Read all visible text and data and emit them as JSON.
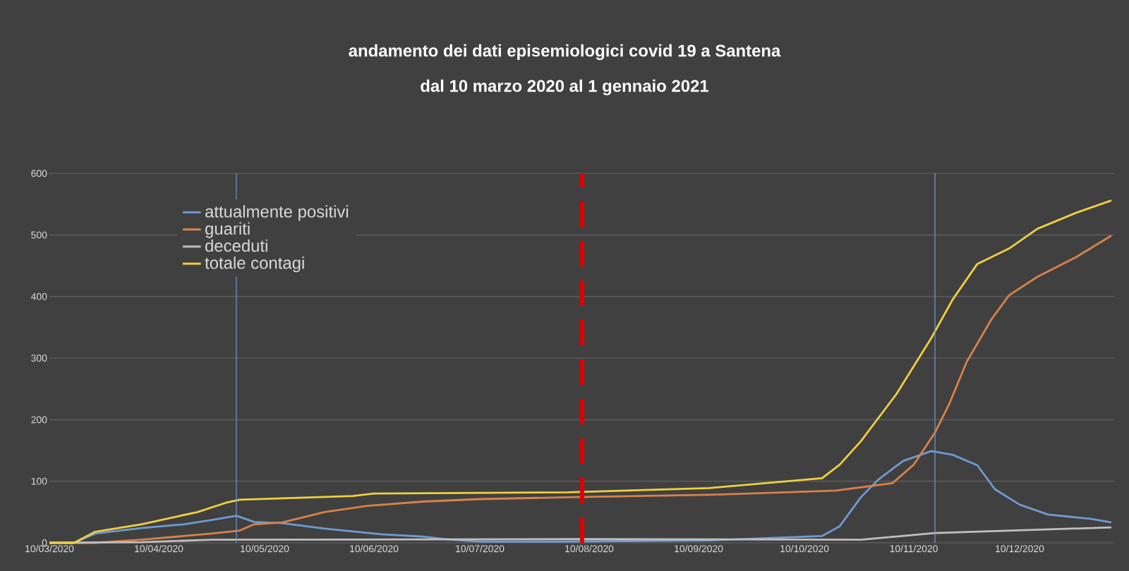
{
  "chart_data": {
    "type": "line",
    "title": "andamento dei dati episemiologici covid 19 a Santena",
    "subtitle": "dal 10 marzo 2020 al 1 gennaio 2021",
    "xlim": [
      "2020-03-10",
      "2021-01-06"
    ],
    "xticks": [
      {
        "value": "2020-03-10",
        "label": "10/03/2020"
      },
      {
        "value": "2020-04-10",
        "label": "10/04/2020"
      },
      {
        "value": "2020-05-10",
        "label": "10/05/2020"
      },
      {
        "value": "2020-06-10",
        "label": "10/06/2020"
      },
      {
        "value": "2020-07-10",
        "label": "10/07/2020"
      },
      {
        "value": "2020-08-10",
        "label": "10/08/2020"
      },
      {
        "value": "2020-09-10",
        "label": "10/09/2020"
      },
      {
        "value": "2020-10-10",
        "label": "10/10/2020"
      },
      {
        "value": "2020-11-10",
        "label": "10/11/2020"
      },
      {
        "value": "2020-12-10",
        "label": "10/12/2020"
      }
    ],
    "ylim": [
      0,
      600
    ],
    "yticks": [
      0,
      100,
      200,
      300,
      400,
      500,
      600
    ],
    "grid": "y",
    "legend": "top left",
    "marker": "none",
    "line_style": "solid",
    "ref_lines": [
      {
        "axis": "x",
        "value": "2020-05-02",
        "color": "#6f9bd0",
        "line_style": "solid"
      },
      {
        "axis": "x",
        "value": "2020-08-08",
        "color": "#e00000",
        "line_style": "dashed"
      },
      {
        "axis": "x",
        "value": "2020-11-16",
        "color": "#6f9bd0",
        "line_style": "solid"
      }
    ],
    "series": [
      {
        "name": "attualmente positivi",
        "color": "#6f9bd0",
        "x": [
          "2020-03-10",
          "2020-03-17",
          "2020-03-23",
          "2020-04-05",
          "2020-04-17",
          "2020-04-25",
          "2020-05-02",
          "2020-05-07",
          "2020-05-15",
          "2020-05-27",
          "2020-06-12",
          "2020-06-24",
          "2020-07-02",
          "2020-07-10",
          "2020-08-04",
          "2020-09-13",
          "2020-10-15",
          "2020-10-20",
          "2020-10-26",
          "2020-10-31",
          "2020-11-07",
          "2020-11-15",
          "2020-11-21",
          "2020-11-28",
          "2020-12-03",
          "2020-12-10",
          "2020-12-18",
          "2020-12-30",
          "2021-01-05"
        ],
        "values": [
          0,
          0,
          15,
          24,
          30,
          37,
          44,
          34,
          32,
          23,
          14,
          10,
          5,
          2,
          2,
          4,
          11,
          27,
          74,
          103,
          133,
          149,
          143,
          126,
          87,
          62,
          46,
          39,
          33
        ]
      },
      {
        "name": "guariti",
        "color": "#d9824a",
        "x": [
          "2020-03-10",
          "2020-03-23",
          "2020-04-05",
          "2020-04-25",
          "2020-05-03",
          "2020-05-07",
          "2020-05-15",
          "2020-05-27",
          "2020-06-08",
          "2020-06-24",
          "2020-07-10",
          "2020-08-04",
          "2020-09-13",
          "2020-10-15",
          "2020-10-19",
          "2020-11-04",
          "2020-11-10",
          "2020-11-16",
          "2020-11-20",
          "2020-11-25",
          "2020-12-02",
          "2020-12-07",
          "2020-12-15",
          "2020-12-26",
          "2021-01-05"
        ],
        "values": [
          0,
          0,
          5,
          15,
          20,
          30,
          33,
          50,
          60,
          67,
          71,
          74,
          78,
          84,
          85,
          97,
          127,
          179,
          225,
          294,
          363,
          402,
          432,
          464,
          499
        ]
      },
      {
        "name": "deceduti",
        "color": "#bfbfbf",
        "x": [
          "2020-03-10",
          "2020-04-05",
          "2020-04-25",
          "2020-08-04",
          "2020-10-26",
          "2020-11-16",
          "2021-01-05"
        ],
        "values": [
          0,
          1,
          5,
          6,
          5,
          16,
          25
        ]
      },
      {
        "name": "totale contagi",
        "color": "#f0d040",
        "x": [
          "2020-03-10",
          "2020-03-17",
          "2020-03-23",
          "2020-04-05",
          "2020-04-21",
          "2020-04-29",
          "2020-05-03",
          "2020-06-04",
          "2020-06-10",
          "2020-08-04",
          "2020-09-13",
          "2020-10-15",
          "2020-10-20",
          "2020-10-26",
          "2020-11-05",
          "2020-11-15",
          "2020-11-21",
          "2020-11-28",
          "2020-12-07",
          "2020-12-15",
          "2020-12-26",
          "2021-01-05"
        ],
        "values": [
          0,
          0,
          18,
          30,
          50,
          65,
          70,
          76,
          80,
          82,
          89,
          105,
          127,
          165,
          241,
          333,
          395,
          453,
          478,
          510,
          536,
          556
        ]
      }
    ]
  }
}
